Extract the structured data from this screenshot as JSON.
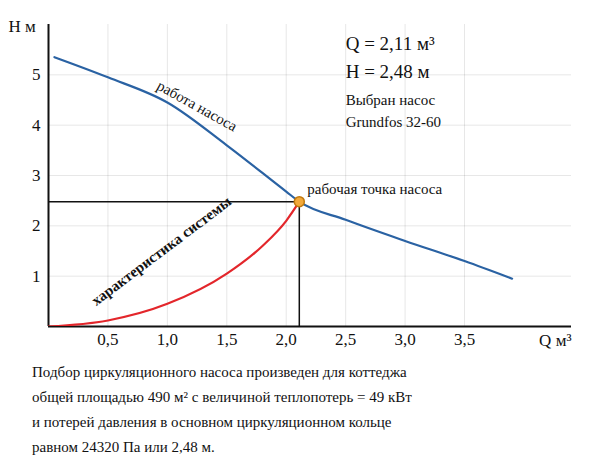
{
  "chart_data": {
    "type": "line",
    "x_label": "Q м³",
    "y_label": "H м",
    "xlim": [
      0,
      4.4
    ],
    "ylim": [
      0,
      6
    ],
    "xticks": [
      {
        "value": 0.5,
        "label": "0,5"
      },
      {
        "value": 1.0,
        "label": "1,0"
      },
      {
        "value": 1.5,
        "label": "1,5"
      },
      {
        "value": 2.0,
        "label": "2,0"
      },
      {
        "value": 2.5,
        "label": "2,5"
      },
      {
        "value": 3.0,
        "label": "3,0"
      },
      {
        "value": 3.5,
        "label": "3,5"
      }
    ],
    "yticks": [
      1,
      2,
      3,
      4,
      5
    ],
    "grid": true,
    "series": [
      {
        "name": "работа насоса",
        "color": "#2a62a3",
        "x": [
          0.05,
          0.5,
          1.0,
          1.5,
          2.0,
          2.11,
          2.5,
          3.0,
          3.5,
          3.9
        ],
        "values": [
          5.35,
          4.95,
          4.45,
          3.6,
          2.68,
          2.48,
          2.12,
          1.7,
          1.3,
          0.95
        ]
      },
      {
        "name": "характеристика системы",
        "color": "#e3262b",
        "x": [
          0,
          0.5,
          1.0,
          1.5,
          1.8,
          2.0,
          2.11
        ],
        "values": [
          0,
          0.12,
          0.45,
          1.05,
          1.6,
          2.1,
          2.48
        ]
      }
    ],
    "operating_point": {
      "x": 2.11,
      "y": 2.48,
      "label": "рабочая точка насоса",
      "color": "#f2a93b"
    },
    "annotations": [
      "Q = 2,11 м³",
      "H = 2,48 м",
      "Выбран насос",
      "Grundfos 32-60"
    ],
    "caption": [
      "Подбор циркуляционного насоса произведен для коттеджа",
      "общей площадью 490 м² с величиной теплопотерь = 49 кВт",
      "и потерей давления в основном циркуляционном кольце",
      "равном 24320 Па или 2,48 м."
    ]
  }
}
